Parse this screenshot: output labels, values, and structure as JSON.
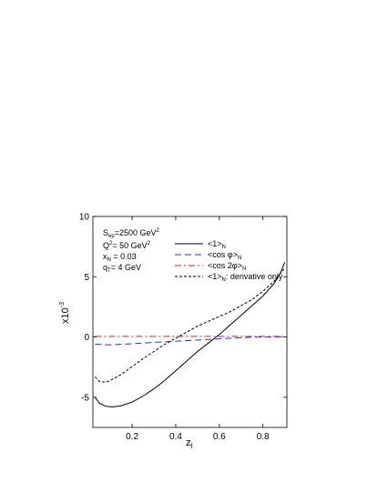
{
  "chart_data": {
    "type": "line",
    "xlabel": "z",
    "xlabel_sub": "f",
    "ylabel": "x10",
    "ylabel_sup": "-3",
    "xlim": [
      0.02,
      0.91
    ],
    "ylim": [
      -7.5,
      10
    ],
    "x_ticks": [
      0.2,
      0.4,
      0.6,
      0.8
    ],
    "y_ticks": [
      -5,
      0,
      5,
      10
    ],
    "grid": false,
    "annotations": [
      {
        "main": "S",
        "sub": "ep",
        "rest": "=2500 GeV",
        "sup": "2"
      },
      {
        "main": "Q",
        "sup": "2",
        "rest": "= 50 GeV",
        "sup2": "2"
      },
      {
        "main": "x",
        "sub": "N",
        "rest": " = 0.03"
      },
      {
        "main": "q",
        "sub": "T",
        "rest": "= 4 GeV"
      }
    ],
    "legend_position": "top-right",
    "series": [
      {
        "name": "<1>N",
        "legend": {
          "pre": "<1>",
          "sub": "N",
          "post": ""
        },
        "color": "#000000",
        "style": "solid",
        "x": [
          0.03,
          0.05,
          0.08,
          0.11,
          0.15,
          0.2,
          0.25,
          0.3,
          0.35,
          0.4,
          0.45,
          0.5,
          0.55,
          0.6,
          0.65,
          0.7,
          0.75,
          0.8,
          0.85,
          0.88,
          0.9
        ],
        "y": [
          -5.0,
          -5.5,
          -5.75,
          -5.8,
          -5.7,
          -5.4,
          -4.9,
          -4.3,
          -3.6,
          -2.8,
          -2.0,
          -1.2,
          -0.5,
          0.2,
          1.0,
          1.8,
          2.6,
          3.4,
          4.4,
          5.3,
          6.2
        ]
      },
      {
        "name": "<cos φ>N",
        "legend": {
          "pre": "<cos φ>",
          "sub": "N",
          "post": ""
        },
        "color": "#2233cc",
        "style": "dashed",
        "x": [
          0.03,
          0.1,
          0.2,
          0.3,
          0.4,
          0.5,
          0.6,
          0.7,
          0.8,
          0.9
        ],
        "y": [
          -0.6,
          -0.65,
          -0.55,
          -0.45,
          -0.35,
          -0.25,
          -0.15,
          -0.05,
          0.0,
          0.0
        ]
      },
      {
        "name": "<cos 2φ>N",
        "legend": {
          "pre": "<cos 2φ>",
          "sub": "N",
          "post": ""
        },
        "color": "#dd2222",
        "style": "dashdot",
        "x": [
          0.03,
          0.2,
          0.4,
          0.6,
          0.8,
          0.9
        ],
        "y": [
          0.05,
          0.05,
          0.05,
          0.05,
          0.05,
          0.05
        ]
      },
      {
        "name": "<1>N: derivative only",
        "legend": {
          "pre": "<1>",
          "sub": "N",
          "post": ": derivative only"
        },
        "color": "#000000",
        "style": "dotted",
        "x": [
          0.03,
          0.05,
          0.08,
          0.1,
          0.15,
          0.2,
          0.25,
          0.3,
          0.35,
          0.4,
          0.45,
          0.5,
          0.55,
          0.6,
          0.65,
          0.7,
          0.75,
          0.8,
          0.85,
          0.9
        ],
        "y": [
          -3.3,
          -3.7,
          -3.75,
          -3.6,
          -3.1,
          -2.45,
          -1.8,
          -1.2,
          -0.6,
          -0.1,
          0.4,
          0.9,
          1.3,
          1.7,
          2.1,
          2.6,
          3.1,
          3.8,
          4.6,
          5.7
        ]
      }
    ]
  }
}
